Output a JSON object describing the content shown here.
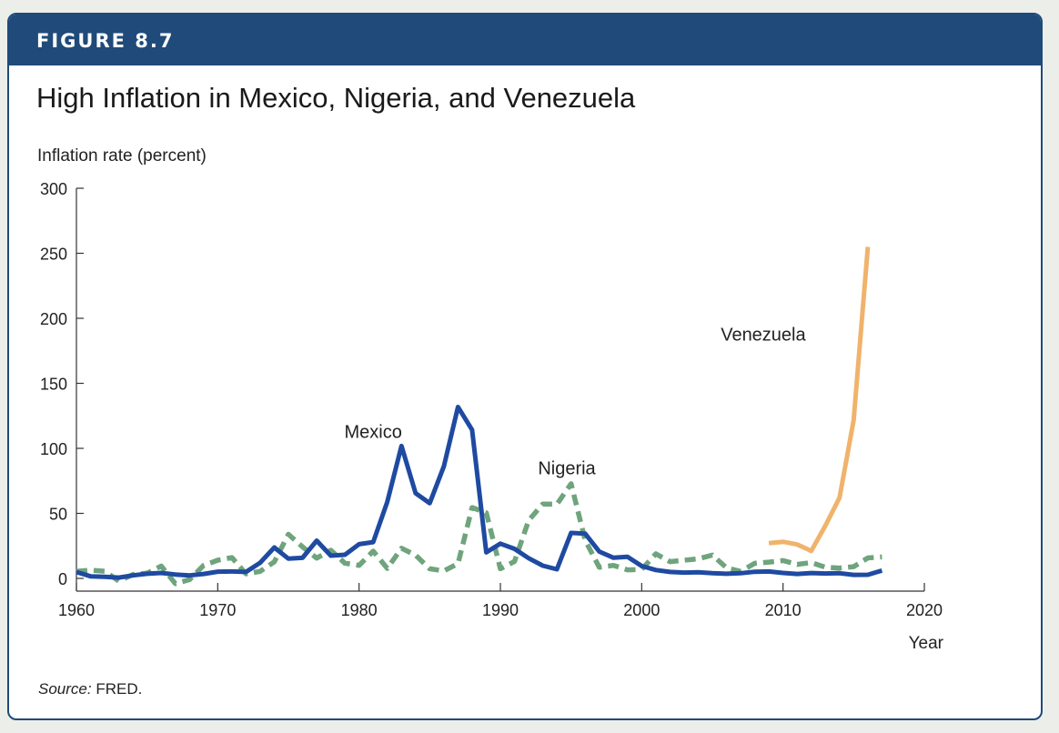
{
  "figure": {
    "label": "FIGURE 8.7",
    "title": "High Inflation in Mexico, Nigeria, and Venezuela",
    "source_prefix": "Source:",
    "source_text": " FRED."
  },
  "colors": {
    "banner": "#1f4a79",
    "mexico": "#1f4aa1",
    "nigeria": "#6fa47c",
    "venezuela": "#f0b36c"
  },
  "chart_data": {
    "type": "line",
    "title": "High Inflation in Mexico, Nigeria, and Venezuela",
    "ylabel": "Inflation rate (percent)",
    "xlabel": "Year",
    "xlim": [
      1960,
      2020
    ],
    "ylim": [
      0,
      300
    ],
    "xticks": [
      1960,
      1970,
      1980,
      1990,
      2000,
      2010,
      2020
    ],
    "yticks": [
      0,
      50,
      100,
      150,
      200,
      250,
      300
    ],
    "grid": false,
    "legend": "none",
    "series": [
      {
        "name": "Mexico",
        "color": "#1f4aa1",
        "style": "solid",
        "x": [
          1960,
          1961,
          1962,
          1963,
          1964,
          1965,
          1966,
          1967,
          1968,
          1969,
          1970,
          1971,
          1972,
          1973,
          1974,
          1975,
          1976,
          1977,
          1978,
          1979,
          1980,
          1981,
          1982,
          1983,
          1984,
          1985,
          1986,
          1987,
          1988,
          1989,
          1990,
          1991,
          1992,
          1993,
          1994,
          1995,
          1996,
          1997,
          1998,
          1999,
          2000,
          2001,
          2002,
          2003,
          2004,
          2005,
          2006,
          2007,
          2008,
          2009,
          2010,
          2011,
          2012,
          2013,
          2014,
          2015,
          2016,
          2017
        ],
        "y": [
          4.9,
          1.6,
          1.2,
          0.6,
          2.3,
          3.6,
          4.2,
          3.0,
          2.3,
          3.4,
          5.2,
          5.3,
          5.0,
          12.0,
          23.8,
          15.2,
          15.8,
          29.0,
          17.5,
          18.2,
          26.3,
          27.9,
          58.9,
          101.8,
          65.5,
          57.8,
          86.2,
          131.8,
          114.2,
          20.0,
          26.7,
          22.7,
          15.5,
          9.8,
          7.0,
          35.0,
          34.4,
          20.6,
          15.9,
          16.6,
          9.5,
          6.4,
          5.0,
          4.5,
          4.7,
          4.0,
          3.6,
          4.0,
          5.1,
          5.3,
          4.2,
          3.4,
          4.1,
          3.8,
          4.0,
          2.7,
          2.8,
          6.0
        ]
      },
      {
        "name": "Nigeria",
        "color": "#6fa47c",
        "style": "dashed",
        "x": [
          1960,
          1961,
          1962,
          1963,
          1964,
          1965,
          1966,
          1967,
          1968,
          1969,
          1970,
          1971,
          1972,
          1973,
          1974,
          1975,
          1976,
          1977,
          1978,
          1979,
          1980,
          1981,
          1982,
          1983,
          1984,
          1985,
          1986,
          1987,
          1988,
          1989,
          1990,
          1991,
          1992,
          1993,
          1994,
          1995,
          1996,
          1997,
          1998,
          1999,
          2000,
          2001,
          2002,
          2003,
          2004,
          2005,
          2006,
          2007,
          2008,
          2009,
          2010,
          2011,
          2012,
          2013,
          2014,
          2015,
          2016,
          2017
        ],
        "y": [
          5.4,
          6.3,
          5.5,
          -2.0,
          3.0,
          4.0,
          9.5,
          -4.0,
          -1.0,
          10.0,
          14.0,
          16.0,
          3.5,
          5.4,
          12.7,
          33.9,
          24.3,
          15.6,
          21.7,
          11.7,
          10.0,
          21.0,
          7.7,
          23.2,
          17.8,
          7.4,
          5.7,
          11.3,
          54.5,
          50.5,
          7.4,
          13.0,
          44.6,
          57.2,
          57.0,
          72.8,
          29.3,
          8.5,
          10.0,
          6.6,
          6.9,
          18.9,
          12.9,
          14.0,
          15.0,
          17.9,
          8.2,
          5.4,
          11.6,
          12.5,
          13.7,
          10.8,
          12.2,
          8.5,
          8.0,
          9.0,
          15.7,
          16.5
        ]
      },
      {
        "name": "Venezuela",
        "color": "#f0b36c",
        "style": "solid",
        "x": [
          2009,
          2010,
          2011,
          2012,
          2013,
          2014,
          2015,
          2016
        ],
        "y": [
          27.1,
          28.2,
          26.1,
          21.1,
          40.6,
          62.2,
          121.7,
          254.9
        ]
      }
    ],
    "annotations": [
      {
        "text": "Mexico",
        "x": 1981.0,
        "y": 108
      },
      {
        "text": "Nigeria",
        "x": 1994.7,
        "y": 80
      },
      {
        "text": "Venezuela",
        "x": 2008.6,
        "y": 183
      }
    ]
  }
}
